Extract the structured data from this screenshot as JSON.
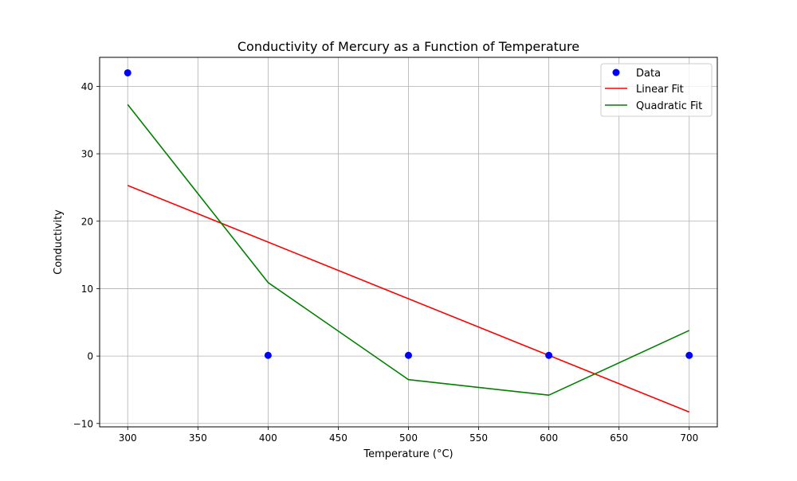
{
  "chart_data": {
    "type": "line",
    "title": "Conductivity of Mercury as a Function of Temperature",
    "xlabel": "Temperature (°C)",
    "ylabel": "Conductivity",
    "xlim": [
      280,
      720
    ],
    "ylim": [
      -10.5,
      44.3
    ],
    "xticks": [
      300,
      350,
      400,
      450,
      500,
      550,
      600,
      650,
      700
    ],
    "yticks": [
      -10,
      0,
      10,
      20,
      30,
      40
    ],
    "ytick_labels": [
      "−10",
      "0",
      "10",
      "20",
      "30",
      "40"
    ],
    "grid": true,
    "legend_position": "top-right",
    "series": [
      {
        "name": "Data",
        "kind": "scatter",
        "color": "#0000ff",
        "x": [
          300,
          400,
          500,
          600,
          700
        ],
        "y": [
          42,
          0.1,
          0.1,
          0.1,
          0.1
        ]
      },
      {
        "name": "Linear Fit",
        "kind": "line",
        "color": "#ff0000",
        "x": [
          300,
          400,
          500,
          600,
          700
        ],
        "y": [
          25.3,
          16.9,
          8.5,
          0.1,
          -8.3
        ]
      },
      {
        "name": "Quadratic Fit",
        "kind": "line",
        "color": "#008000",
        "x": [
          300,
          400,
          500,
          600,
          700
        ],
        "y": [
          37.3,
          10.9,
          -3.5,
          -5.8,
          3.8
        ]
      }
    ]
  }
}
